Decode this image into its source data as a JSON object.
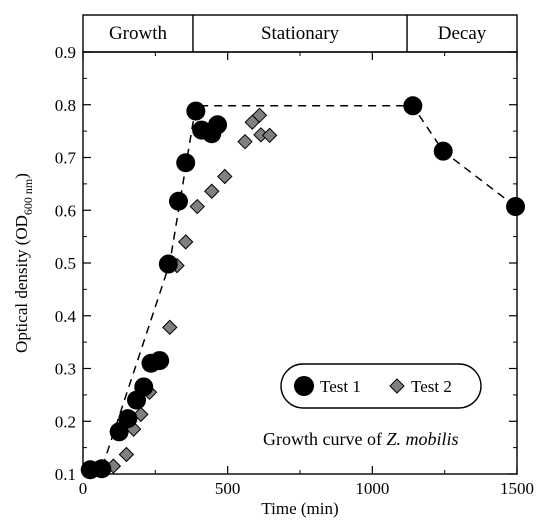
{
  "chart_data": {
    "type": "scatter",
    "xlabel": "Time (min)",
    "ylabel": "Optical density (OD",
    "ylabel_sub": "600 nm",
    "ylabel_close": ")",
    "xlim": [
      0,
      1500
    ],
    "ylim": [
      0.1,
      0.9
    ],
    "x_ticks": [
      0,
      500,
      1000,
      1500
    ],
    "y_ticks": [
      0.1,
      0.2,
      0.3,
      0.4,
      0.5,
      0.6,
      0.7,
      0.8,
      0.9
    ],
    "grid": false,
    "phases": [
      {
        "label": "Growth",
        "x_start": 0,
        "x_end": 380
      },
      {
        "label": "Stationary",
        "x_start": 380,
        "x_end": 1120
      },
      {
        "label": "Decay",
        "x_start": 1120,
        "x_end": 1500
      }
    ],
    "annotation_prefix": "Growth curve of ",
    "annotation_italic": "Z. mobilis",
    "legend_position": "lower-right",
    "series": [
      {
        "name": "Test 1",
        "marker": "circle",
        "color": "#000000",
        "points": [
          [
            25,
            0.108
          ],
          [
            65,
            0.11
          ],
          [
            125,
            0.18
          ],
          [
            155,
            0.205
          ],
          [
            185,
            0.24
          ],
          [
            210,
            0.265
          ],
          [
            235,
            0.31
          ],
          [
            265,
            0.315
          ],
          [
            295,
            0.498
          ],
          [
            330,
            0.617
          ],
          [
            355,
            0.69
          ],
          [
            390,
            0.788
          ],
          [
            410,
            0.752
          ],
          [
            445,
            0.745
          ],
          [
            465,
            0.762
          ],
          [
            1140,
            0.798
          ],
          [
            1245,
            0.712
          ],
          [
            1495,
            0.607
          ]
        ]
      },
      {
        "name": "Test 2",
        "marker": "diamond",
        "color": "#808080",
        "points": [
          [
            105,
            0.115
          ],
          [
            150,
            0.137
          ],
          [
            175,
            0.185
          ],
          [
            200,
            0.213
          ],
          [
            230,
            0.255
          ],
          [
            255,
            0.318
          ],
          [
            300,
            0.378
          ],
          [
            325,
            0.495
          ],
          [
            355,
            0.54
          ],
          [
            395,
            0.607
          ],
          [
            445,
            0.636
          ],
          [
            490,
            0.664
          ],
          [
            560,
            0.73
          ],
          [
            585,
            0.767
          ],
          [
            615,
            0.743
          ],
          [
            645,
            0.742
          ],
          [
            610,
            0.78
          ]
        ]
      }
    ],
    "trend_line": [
      [
        25,
        0.108
      ],
      [
        65,
        0.11
      ],
      [
        300,
        0.5
      ],
      [
        390,
        0.798
      ],
      [
        1140,
        0.798
      ],
      [
        1245,
        0.712
      ],
      [
        1495,
        0.607
      ]
    ]
  }
}
